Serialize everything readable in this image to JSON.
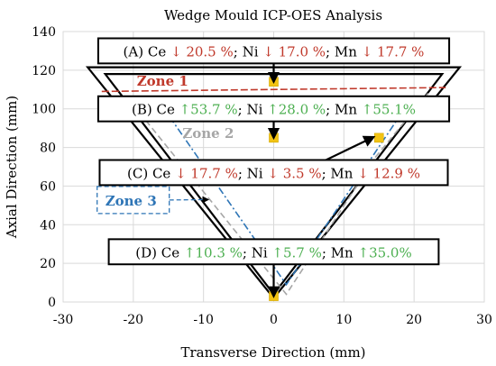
{
  "chart_data": {
    "type": "line",
    "title": "Wedge Mould ICP-OES Analysis",
    "xlabel": "Transverse Direction (mm)",
    "ylabel": "Axial Direction (mm)",
    "xlim": [
      -30,
      30
    ],
    "ylim": [
      0,
      140
    ],
    "xticks": [
      -30,
      -20,
      -10,
      0,
      10,
      20,
      30
    ],
    "yticks": [
      0,
      20,
      40,
      60,
      80,
      100,
      120,
      140
    ],
    "grid": true,
    "mould_outer": [
      [
        -26.5,
        121.5
      ],
      [
        26.5,
        121.5
      ],
      [
        0,
        2
      ]
    ],
    "mould_inner": [
      [
        -24,
        118
      ],
      [
        24,
        118
      ],
      [
        0,
        4
      ]
    ],
    "zone_lines": [
      {
        "name": "Zone 1",
        "color": "#c0392b",
        "dash": "8,3",
        "points": [
          [
            -24.5,
            109
          ],
          [
            24.5,
            111
          ]
        ]
      },
      {
        "name": "Zone 2",
        "color": "#a6a6a6",
        "dash": "7,4",
        "points": [
          [
            -20,
            102
          ],
          [
            1.8,
            4
          ],
          [
            14.5,
            75
          ],
          [
            22,
            108
          ]
        ]
      },
      {
        "name": "Zone 3",
        "color": "#2e75b6",
        "dash": "8,3,2,3",
        "points": [
          [
            -16,
            102
          ],
          [
            1.8,
            9
          ],
          [
            19,
            102
          ]
        ]
      }
    ],
    "sample_points": [
      {
        "x": 0,
        "y": 114
      },
      {
        "x": 0,
        "y": 85
      },
      {
        "x": 15,
        "y": 85
      },
      {
        "x": 0,
        "y": 3
      }
    ],
    "zone_labels": [
      {
        "text": "Zone 1",
        "x": -19.5,
        "y": 112,
        "color": "#c0392b"
      },
      {
        "text": "Zone 2",
        "x": -13,
        "y": 85,
        "color": "#a6a6a6"
      },
      {
        "text": "Zone 3",
        "x": -24,
        "y": 50,
        "color": "#2e75b6",
        "boxed": true
      }
    ],
    "annotations": [
      {
        "label": "(A)",
        "cx": 0,
        "cy": 130,
        "w": 25,
        "h": 13,
        "items": [
          [
            "Ce",
            "↓ 20.5 %",
            "#c0392b"
          ],
          [
            "Ni",
            "↓ 17.0 %",
            "#c0392b"
          ],
          [
            "Mn",
            "↓ 17.7 %",
            "#c0392b"
          ]
        ],
        "arrow_to": [
          0,
          115
        ]
      },
      {
        "label": "(B)",
        "cx": 0,
        "cy": 100,
        "w": 25,
        "h": 13,
        "items": [
          [
            "Ce",
            "↑53.7 %",
            "#4caf50"
          ],
          [
            "Ni",
            "↑28.0 %",
            "#4caf50"
          ],
          [
            "Mn",
            "↑55.1%",
            "#4caf50"
          ]
        ],
        "arrow_to": [
          0,
          86
        ]
      },
      {
        "label": "(C)",
        "cx": 0,
        "cy": 67,
        "w": 24.8,
        "h": 13,
        "items": [
          [
            "Ce",
            "↓ 17.7 %",
            "#c0392b"
          ],
          [
            "Ni",
            "↓ 3.5 %",
            "#c0392b"
          ],
          [
            "Mn",
            "↓ 12.9 %",
            "#c0392b"
          ]
        ],
        "arrow_to": [
          14,
          85
        ]
      },
      {
        "label": "(D)",
        "cx": 0,
        "cy": 26,
        "w": 23.5,
        "h": 13,
        "items": [
          [
            "Ce",
            "↑10.3 %",
            "#4caf50"
          ],
          [
            "Ni",
            "↑5.7 %",
            "#4caf50"
          ],
          [
            "Mn",
            "↑35.0%",
            "#4caf50"
          ]
        ],
        "arrow_to": [
          0,
          4
        ]
      }
    ]
  }
}
